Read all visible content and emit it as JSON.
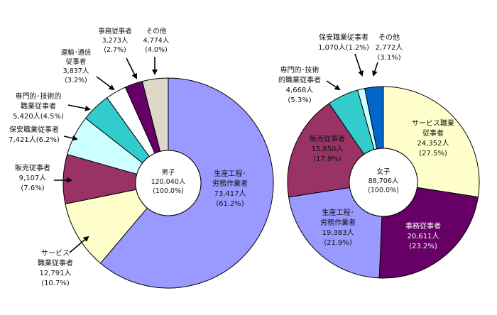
{
  "chart_data": [
    {
      "type": "pie",
      "donut": true,
      "center_label": [
        "男子",
        "120,040人",
        "(100.0%)"
      ],
      "slices": [
        {
          "name": "生産工程･労務作業者",
          "value": 73417,
          "percent": 61.2,
          "color": "#9999ff",
          "label_lines": [
            "生産工程･",
            "労務作業者",
            "73,417人",
            "(61.2%)"
          ]
        },
        {
          "name": "サービス職業従事者",
          "value": 12791,
          "percent": 10.7,
          "color": "#ffffcc",
          "label_lines": [
            "サービス",
            "職業従事者",
            "12,791人",
            "(10.7%)"
          ]
        },
        {
          "name": "販売従事者",
          "value": 9107,
          "percent": 7.6,
          "color": "#993366",
          "label_lines": [
            "販売従事者",
            "9,107人",
            "(7.6%)"
          ]
        },
        {
          "name": "保安職業従事者",
          "value": 7421,
          "percent": 6.2,
          "color": "#ccffff",
          "label_lines": [
            "保安職業従事者",
            "7,421人(6.2%)"
          ]
        },
        {
          "name": "専門的･技術的職業従事者",
          "value": 5420,
          "percent": 4.5,
          "color": "#33cccc",
          "label_lines": [
            "専門的･技術的",
            "職業従事者",
            "5,420人(4.5%)"
          ]
        },
        {
          "name": "運輸･通信従事者",
          "value": 3837,
          "percent": 3.2,
          "color": "#ffffff",
          "label_lines": [
            "運輸･通信",
            "従事者",
            "3,837人",
            "(3.2%)"
          ]
        },
        {
          "name": "事務従事者",
          "value": 3273,
          "percent": 2.7,
          "color": "#660066",
          "label_lines": [
            "事務従事者",
            "3,273人",
            "(2.7%)"
          ]
        },
        {
          "name": "その他",
          "value": 4774,
          "percent": 4.0,
          "color": "#ddd8c8",
          "label_lines": [
            "その他",
            "4,774人",
            "(4.0%)"
          ]
        }
      ]
    },
    {
      "type": "pie",
      "donut": true,
      "center_label": [
        "女子",
        "88,706人",
        "(100.0%)"
      ],
      "slices": [
        {
          "name": "サービス職業従事者",
          "value": 24352,
          "percent": 27.5,
          "color": "#ffffcc",
          "label_lines": [
            "サービス職業",
            "従事者",
            "24,352人",
            "(27.5%)"
          ]
        },
        {
          "name": "事務従事者",
          "value": 20611,
          "percent": 23.2,
          "color": "#660066",
          "label_lines": [
            "事務従事者",
            "20,611人",
            "(23.2%)"
          ]
        },
        {
          "name": "生産工程･労務作業者",
          "value": 19383,
          "percent": 21.9,
          "color": "#9999ff",
          "label_lines": [
            "生産工程･",
            "労務作業者",
            "19,383人",
            "(21.9%)"
          ]
        },
        {
          "name": "販売従事者",
          "value": 15850,
          "percent": 17.9,
          "color": "#993366",
          "label_lines": [
            "販売従事者",
            "15,850人",
            "(17.9%)"
          ]
        },
        {
          "name": "専門的･技術的職業従事者",
          "value": 4668,
          "percent": 5.3,
          "color": "#33cccc",
          "label_lines": [
            "専門的･技術",
            "的職業従事者",
            "4,668人",
            "(5.3%)"
          ]
        },
        {
          "name": "保安職業従事者",
          "value": 1070,
          "percent": 1.2,
          "color": "#ccffff",
          "label_lines": [
            "保安職業従事者",
            "1,070人(1.2%)"
          ]
        },
        {
          "name": "その他",
          "value": 2772,
          "percent": 3.1,
          "color": "#0066cc",
          "label_lines": [
            "その他",
            "2,772人",
            "(3.1%)"
          ]
        }
      ]
    }
  ]
}
